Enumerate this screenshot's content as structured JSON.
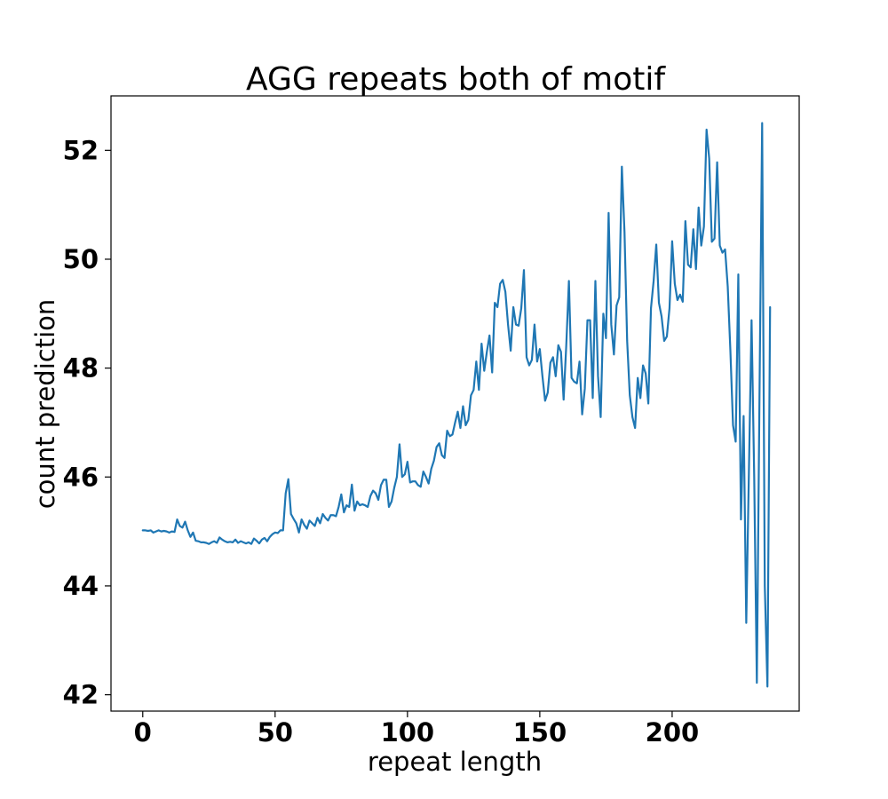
{
  "chart_data": {
    "type": "line",
    "title": "AGG repeats both of motif",
    "xlabel": "repeat length",
    "ylabel": "count prediction",
    "xlim": [
      -12,
      248
    ],
    "ylim": [
      41.7,
      53.0
    ],
    "xticks": [
      0,
      50,
      100,
      150,
      200
    ],
    "yticks": [
      42,
      44,
      46,
      48,
      50,
      52
    ],
    "grid": false,
    "legend": "none",
    "series": [
      {
        "color": "#1f77b4",
        "points": [
          [
            0,
            45.02
          ],
          [
            1,
            45.02
          ],
          [
            2,
            45.01
          ],
          [
            3,
            45.02
          ],
          [
            4,
            44.98
          ],
          [
            5,
            45.0
          ],
          [
            6,
            45.02
          ],
          [
            7,
            45.0
          ],
          [
            8,
            45.01
          ],
          [
            9,
            45.0
          ],
          [
            10,
            44.98
          ],
          [
            11,
            45.0
          ],
          [
            12,
            44.99
          ],
          [
            13,
            45.22
          ],
          [
            14,
            45.1
          ],
          [
            15,
            45.07
          ],
          [
            16,
            45.18
          ],
          [
            17,
            45.02
          ],
          [
            18,
            44.9
          ],
          [
            19,
            44.98
          ],
          [
            20,
            44.83
          ],
          [
            21,
            44.82
          ],
          [
            22,
            44.8
          ],
          [
            23,
            44.8
          ],
          [
            24,
            44.79
          ],
          [
            25,
            44.77
          ],
          [
            26,
            44.8
          ],
          [
            27,
            44.82
          ],
          [
            28,
            44.79
          ],
          [
            29,
            44.89
          ],
          [
            30,
            44.85
          ],
          [
            31,
            44.82
          ],
          [
            32,
            44.8
          ],
          [
            33,
            44.81
          ],
          [
            34,
            44.8
          ],
          [
            35,
            44.85
          ],
          [
            36,
            44.79
          ],
          [
            37,
            44.82
          ],
          [
            38,
            44.8
          ],
          [
            39,
            44.78
          ],
          [
            40,
            44.8
          ],
          [
            41,
            44.77
          ],
          [
            42,
            44.87
          ],
          [
            43,
            44.83
          ],
          [
            44,
            44.78
          ],
          [
            45,
            44.85
          ],
          [
            46,
            44.88
          ],
          [
            47,
            44.82
          ],
          [
            48,
            44.9
          ],
          [
            49,
            44.95
          ],
          [
            50,
            44.98
          ],
          [
            51,
            44.97
          ],
          [
            52,
            45.02
          ],
          [
            53,
            45.02
          ],
          [
            54,
            45.7
          ],
          [
            55,
            45.96
          ],
          [
            56,
            45.32
          ],
          [
            57,
            45.23
          ],
          [
            58,
            45.15
          ],
          [
            59,
            44.98
          ],
          [
            60,
            45.22
          ],
          [
            61,
            45.12
          ],
          [
            62,
            45.05
          ],
          [
            63,
            45.2
          ],
          [
            64,
            45.15
          ],
          [
            65,
            45.1
          ],
          [
            66,
            45.25
          ],
          [
            67,
            45.15
          ],
          [
            68,
            45.32
          ],
          [
            69,
            45.25
          ],
          [
            70,
            45.2
          ],
          [
            71,
            45.3
          ],
          [
            72,
            45.3
          ],
          [
            73,
            45.28
          ],
          [
            74,
            45.45
          ],
          [
            75,
            45.68
          ],
          [
            76,
            45.35
          ],
          [
            77,
            45.48
          ],
          [
            78,
            45.45
          ],
          [
            79,
            45.86
          ],
          [
            80,
            45.38
          ],
          [
            81,
            45.55
          ],
          [
            82,
            45.48
          ],
          [
            83,
            45.5
          ],
          [
            84,
            45.48
          ],
          [
            85,
            45.45
          ],
          [
            86,
            45.65
          ],
          [
            87,
            45.75
          ],
          [
            88,
            45.7
          ],
          [
            89,
            45.58
          ],
          [
            90,
            45.85
          ],
          [
            91,
            45.95
          ],
          [
            92,
            45.95
          ],
          [
            93,
            45.45
          ],
          [
            94,
            45.55
          ],
          [
            95,
            45.8
          ],
          [
            96,
            46.0
          ],
          [
            97,
            46.6
          ],
          [
            98,
            46.0
          ],
          [
            99,
            46.05
          ],
          [
            100,
            46.28
          ],
          [
            101,
            45.9
          ],
          [
            102,
            45.92
          ],
          [
            103,
            45.92
          ],
          [
            104,
            45.85
          ],
          [
            105,
            45.82
          ],
          [
            106,
            46.1
          ],
          [
            107,
            46.0
          ],
          [
            108,
            45.88
          ],
          [
            109,
            46.15
          ],
          [
            110,
            46.3
          ],
          [
            111,
            46.55
          ],
          [
            112,
            46.62
          ],
          [
            113,
            46.4
          ],
          [
            114,
            46.35
          ],
          [
            115,
            46.85
          ],
          [
            116,
            46.75
          ],
          [
            117,
            46.78
          ],
          [
            118,
            47.0
          ],
          [
            119,
            47.2
          ],
          [
            120,
            46.9
          ],
          [
            121,
            47.3
          ],
          [
            122,
            46.95
          ],
          [
            123,
            47.05
          ],
          [
            124,
            47.5
          ],
          [
            125,
            47.6
          ],
          [
            126,
            48.12
          ],
          [
            127,
            47.6
          ],
          [
            128,
            48.45
          ],
          [
            129,
            47.95
          ],
          [
            130,
            48.3
          ],
          [
            131,
            48.6
          ],
          [
            132,
            47.92
          ],
          [
            133,
            49.2
          ],
          [
            134,
            49.12
          ],
          [
            135,
            49.55
          ],
          [
            136,
            49.62
          ],
          [
            137,
            49.4
          ],
          [
            138,
            48.8
          ],
          [
            139,
            48.32
          ],
          [
            140,
            49.12
          ],
          [
            141,
            48.8
          ],
          [
            142,
            48.78
          ],
          [
            143,
            49.1
          ],
          [
            144,
            49.8
          ],
          [
            145,
            48.2
          ],
          [
            146,
            48.05
          ],
          [
            147,
            48.15
          ],
          [
            148,
            48.8
          ],
          [
            149,
            48.12
          ],
          [
            150,
            48.35
          ],
          [
            151,
            47.85
          ],
          [
            152,
            47.4
          ],
          [
            153,
            47.55
          ],
          [
            154,
            48.1
          ],
          [
            155,
            48.2
          ],
          [
            156,
            47.85
          ],
          [
            157,
            48.42
          ],
          [
            158,
            48.3
          ],
          [
            159,
            47.42
          ],
          [
            160,
            48.42
          ],
          [
            161,
            49.6
          ],
          [
            162,
            47.82
          ],
          [
            163,
            47.75
          ],
          [
            164,
            47.72
          ],
          [
            165,
            48.12
          ],
          [
            166,
            47.15
          ],
          [
            167,
            47.62
          ],
          [
            168,
            48.88
          ],
          [
            169,
            48.88
          ],
          [
            170,
            47.45
          ],
          [
            171,
            49.6
          ],
          [
            172,
            47.85
          ],
          [
            173,
            47.1
          ],
          [
            174,
            49.0
          ],
          [
            175,
            48.55
          ],
          [
            176,
            50.85
          ],
          [
            177,
            48.8
          ],
          [
            178,
            48.25
          ],
          [
            179,
            49.15
          ],
          [
            180,
            49.3
          ],
          [
            181,
            51.7
          ],
          [
            182,
            50.5
          ],
          [
            183,
            48.5
          ],
          [
            184,
            47.5
          ],
          [
            185,
            47.1
          ],
          [
            186,
            46.9
          ],
          [
            187,
            47.82
          ],
          [
            188,
            47.45
          ],
          [
            189,
            48.05
          ],
          [
            190,
            47.9
          ],
          [
            191,
            47.35
          ],
          [
            192,
            49.1
          ],
          [
            193,
            49.6
          ],
          [
            194,
            50.27
          ],
          [
            195,
            49.2
          ],
          [
            196,
            48.95
          ],
          [
            197,
            48.5
          ],
          [
            198,
            48.58
          ],
          [
            199,
            49.1
          ],
          [
            200,
            50.33
          ],
          [
            201,
            49.55
          ],
          [
            202,
            49.25
          ],
          [
            203,
            49.35
          ],
          [
            204,
            49.22
          ],
          [
            205,
            50.7
          ],
          [
            206,
            49.9
          ],
          [
            207,
            49.85
          ],
          [
            208,
            50.55
          ],
          [
            209,
            49.82
          ],
          [
            210,
            50.95
          ],
          [
            211,
            50.25
          ],
          [
            212,
            50.6
          ],
          [
            213,
            52.38
          ],
          [
            214,
            51.85
          ],
          [
            215,
            50.32
          ],
          [
            216,
            50.38
          ],
          [
            217,
            51.78
          ],
          [
            218,
            50.25
          ],
          [
            219,
            50.12
          ],
          [
            220,
            50.18
          ],
          [
            221,
            49.5
          ],
          [
            222,
            48.32
          ],
          [
            223,
            46.95
          ],
          [
            224,
            46.65
          ],
          [
            225,
            49.72
          ],
          [
            226,
            45.22
          ],
          [
            227,
            47.12
          ],
          [
            228,
            43.32
          ],
          [
            229,
            46.1
          ],
          [
            230,
            48.88
          ],
          [
            231,
            46.0
          ],
          [
            232,
            42.22
          ],
          [
            233,
            47.5
          ],
          [
            234,
            52.5
          ],
          [
            235,
            44.0
          ],
          [
            236,
            42.15
          ],
          [
            237,
            49.12
          ]
        ]
      }
    ]
  }
}
